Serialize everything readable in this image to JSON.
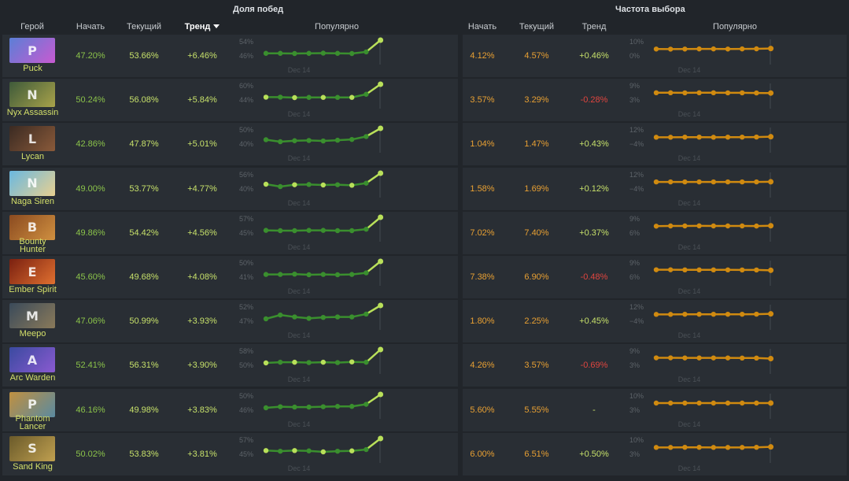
{
  "header": {
    "winrate_group": "Доля побед",
    "pickrate_group": "Частота выбора",
    "hero_col": "Герой",
    "start_col": "Начать",
    "current_col": "Текущий",
    "trend_col": "Тренд",
    "popular_col": "Популярно",
    "start_col2": "Начать",
    "current_col2": "Текущий",
    "trend_col2": "Тренд",
    "popular_col2": "Популярно"
  },
  "colors": {
    "win_line": "#3a8f2e",
    "win_line_end": "#b9e05a",
    "pick_line": "#d08a10",
    "green_text": "#8bc34a",
    "lime_text": "#c6e06a",
    "orange_text": "#e8a033",
    "negative_text": "#e0453f"
  },
  "date_label": "Dec 14",
  "rows": [
    {
      "hero": "Puck",
      "icon": "puck-portrait-icon",
      "win_start": "47.20%",
      "win_current": "53.66%",
      "win_trend": "+6.46%",
      "win_hi": "54%",
      "win_lo": "46%",
      "pick_start": "4.12%",
      "pick_current": "4.57%",
      "pick_trend": "+0.46%",
      "pick_hi": "10%",
      "pick_lo": "0%",
      "win_values": [
        47.3,
        47.3,
        47.2,
        47.3,
        47.4,
        47.3,
        47.2,
        48.0,
        53.7
      ],
      "pick_values": [
        4.1,
        4.0,
        4.1,
        4.2,
        4.2,
        4.1,
        4.2,
        4.3,
        4.6
      ]
    },
    {
      "hero": "Nyx Assassin",
      "icon": "nyx-portrait-icon",
      "win_start": "50.24%",
      "win_current": "56.08%",
      "win_trend": "+5.84%",
      "win_hi": "60%",
      "win_lo": "44%",
      "pick_start": "3.57%",
      "pick_current": "3.29%",
      "pick_trend": "-0.28%",
      "pick_hi": "9%",
      "pick_lo": "3%",
      "win_values": [
        50.3,
        50.3,
        50.1,
        50.2,
        50.2,
        50.2,
        50.2,
        51.6,
        56.1
      ],
      "pick_values": [
        3.6,
        3.6,
        3.5,
        3.6,
        3.6,
        3.5,
        3.5,
        3.4,
        3.3
      ]
    },
    {
      "hero": "Lycan",
      "icon": "lycan-portrait-icon",
      "win_start": "42.86%",
      "win_current": "47.87%",
      "win_trend": "+5.01%",
      "win_hi": "50%",
      "win_lo": "40%",
      "pick_start": "1.04%",
      "pick_current": "1.47%",
      "pick_trend": "+0.43%",
      "pick_hi": "12%",
      "pick_lo": "−4%",
      "win_values": [
        43.3,
        42.5,
        42.9,
        43.0,
        42.8,
        43.1,
        43.4,
        44.6,
        47.9
      ],
      "pick_values": [
        1.0,
        1.0,
        1.1,
        1.1,
        1.0,
        1.1,
        1.1,
        1.2,
        1.5
      ]
    },
    {
      "hero": "Naga Siren",
      "icon": "naga-portrait-icon",
      "win_start": "49.00%",
      "win_current": "53.77%",
      "win_trend": "+4.77%",
      "win_hi": "56%",
      "win_lo": "40%",
      "pick_start": "1.58%",
      "pick_current": "1.69%",
      "pick_trend": "+0.12%",
      "pick_hi": "12%",
      "pick_lo": "−4%",
      "win_values": [
        49.6,
        48.7,
        49.4,
        49.5,
        49.3,
        49.4,
        49.2,
        50.0,
        53.8
      ],
      "pick_values": [
        1.6,
        1.6,
        1.6,
        1.6,
        1.6,
        1.6,
        1.6,
        1.6,
        1.7
      ]
    },
    {
      "hero": "Bounty Hunter",
      "icon": "bounty-portrait-icon",
      "win_start": "49.86%",
      "win_current": "54.42%",
      "win_trend": "+4.56%",
      "win_hi": "57%",
      "win_lo": "45%",
      "pick_start": "7.02%",
      "pick_current": "7.40%",
      "pick_trend": "+0.37%",
      "pick_hi": "9%",
      "pick_lo": "6%",
      "win_values": [
        49.9,
        49.8,
        49.8,
        49.9,
        49.9,
        49.8,
        49.8,
        50.3,
        54.4
      ],
      "pick_values": [
        7.0,
        7.2,
        7.2,
        7.3,
        7.2,
        7.2,
        7.2,
        7.1,
        7.4
      ]
    },
    {
      "hero": "Ember Spirit",
      "icon": "ember-portrait-icon",
      "win_start": "45.60%",
      "win_current": "49.68%",
      "win_trend": "+4.08%",
      "win_hi": "50%",
      "win_lo": "41%",
      "pick_start": "7.38%",
      "pick_current": "6.90%",
      "pick_trend": "-0.48%",
      "pick_hi": "9%",
      "pick_lo": "6%",
      "win_values": [
        45.6,
        45.6,
        45.7,
        45.5,
        45.6,
        45.5,
        45.6,
        46.1,
        49.7
      ],
      "pick_values": [
        7.4,
        7.4,
        7.3,
        7.3,
        7.3,
        7.3,
        7.2,
        7.2,
        6.9
      ]
    },
    {
      "hero": "Meepo",
      "icon": "meepo-portrait-icon",
      "win_start": "47.06%",
      "win_current": "50.99%",
      "win_trend": "+3.93%",
      "win_hi": "52%",
      "win_lo": "47%",
      "pick_start": "1.80%",
      "pick_current": "2.25%",
      "pick_trend": "+0.45%",
      "pick_hi": "12%",
      "pick_lo": "−4%",
      "win_values": [
        48.2,
        49.0,
        48.6,
        48.3,
        48.5,
        48.6,
        48.6,
        49.2,
        51.0
      ],
      "pick_values": [
        1.8,
        1.8,
        1.9,
        1.9,
        1.9,
        1.9,
        1.9,
        2.0,
        2.3
      ]
    },
    {
      "hero": "Arc Warden",
      "icon": "arcwarden-portrait-icon",
      "win_start": "52.41%",
      "win_current": "56.31%",
      "win_trend": "+3.90%",
      "win_hi": "58%",
      "win_lo": "50%",
      "pick_start": "4.26%",
      "pick_current": "3.57%",
      "pick_trend": "-0.69%",
      "pick_hi": "9%",
      "pick_lo": "3%",
      "win_values": [
        52.4,
        52.6,
        52.6,
        52.5,
        52.6,
        52.5,
        52.7,
        52.6,
        56.3
      ],
      "pick_values": [
        4.3,
        4.3,
        4.2,
        4.2,
        4.2,
        4.2,
        4.1,
        4.1,
        3.6
      ]
    },
    {
      "hero": "Phantom Lancer",
      "icon": "phantomlancer-portrait-icon",
      "win_start": "46.16%",
      "win_current": "49.98%",
      "win_trend": "+3.83%",
      "win_hi": "50%",
      "win_lo": "46%",
      "pick_start": "5.60%",
      "pick_current": "5.55%",
      "pick_trend": "-",
      "pick_hi": "10%",
      "pick_lo": "3%",
      "win_values": [
        46.2,
        46.5,
        46.4,
        46.4,
        46.5,
        46.6,
        46.6,
        47.2,
        50.0
      ],
      "pick_values": [
        5.6,
        5.6,
        5.6,
        5.6,
        5.6,
        5.6,
        5.6,
        5.6,
        5.6
      ]
    },
    {
      "hero": "Sand King",
      "icon": "sandking-portrait-icon",
      "win_start": "50.02%",
      "win_current": "53.83%",
      "win_trend": "+3.81%",
      "win_hi": "57%",
      "win_lo": "45%",
      "pick_start": "6.00%",
      "pick_current": "6.51%",
      "pick_trend": "+0.50%",
      "pick_hi": "10%",
      "pick_lo": "3%",
      "win_values": [
        50.2,
        50.0,
        50.2,
        50.1,
        49.8,
        50.0,
        50.1,
        50.5,
        53.8
      ],
      "pick_values": [
        6.0,
        6.0,
        6.1,
        6.1,
        6.0,
        6.0,
        6.0,
        6.1,
        6.5
      ]
    }
  ]
}
